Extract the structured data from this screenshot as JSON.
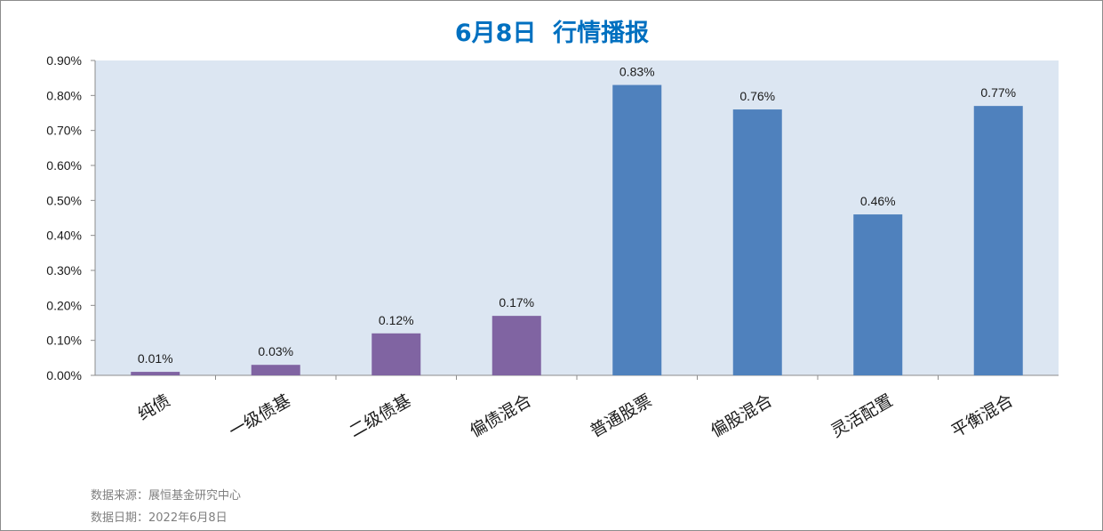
{
  "chart_data": {
    "type": "bar",
    "title": "6月8日  行情播报",
    "categories": [
      "纯债",
      "一级债基",
      "二级债基",
      "偏债混合",
      "普通股票",
      "偏股混合",
      "灵活配置",
      "平衡混合"
    ],
    "values": [
      0.01,
      0.03,
      0.12,
      0.17,
      0.83,
      0.76,
      0.46,
      0.77
    ],
    "value_labels": [
      "0.01%",
      "0.03%",
      "0.12%",
      "0.17%",
      "0.83%",
      "0.76%",
      "0.46%",
      "0.77%"
    ],
    "bar_colors": [
      "#8064a2",
      "#8064a2",
      "#8064a2",
      "#8064a2",
      "#4f81bd",
      "#4f81bd",
      "#4f81bd",
      "#4f81bd"
    ],
    "y_ticks": [
      0,
      0.1,
      0.2,
      0.3,
      0.4,
      0.5,
      0.6,
      0.7,
      0.8,
      0.9
    ],
    "y_tick_labels": [
      "0.00%",
      "0.10%",
      "0.20%",
      "0.30%",
      "0.40%",
      "0.50%",
      "0.60%",
      "0.70%",
      "0.80%",
      "0.90%"
    ],
    "ylim": [
      0,
      0.9
    ],
    "xlabel": "",
    "ylabel": "",
    "grid": false,
    "plot_background": "#dce6f2",
    "title_color": "#0070c0"
  },
  "footer": {
    "source": "数据来源：展恒基金研究中心",
    "date": "数据日期：2022年6月8日"
  }
}
